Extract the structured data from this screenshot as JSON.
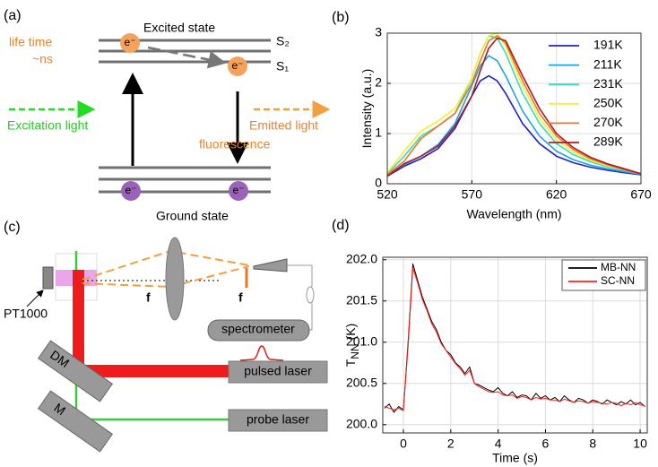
{
  "panel_a": {
    "label": "(a)",
    "excited_state": "Excited state",
    "s2": "S₂",
    "s1": "S₁",
    "life_time": "life time",
    "lifetime_value": "~ns",
    "electrons": [
      "e⁻",
      "e⁻",
      "e⁻",
      "e⁻"
    ],
    "excitation": "Excitation light",
    "emitted": "Emitted light",
    "fluorescence": "fluorescence",
    "ground_state": "Ground state"
  },
  "panel_c": {
    "label": "(c)",
    "sensor": "PT1000",
    "focal_1": "f",
    "focal_2": "f",
    "spectrometer": "spectrometer",
    "dichroic_mirror": "DM",
    "pulsed_laser": "pulsed laser",
    "mirror": "M",
    "probe_laser": "probe laser"
  },
  "chart_data": [
    {
      "type": "line",
      "panel_label": "(b)",
      "xlabel": "Wavelength (nm)",
      "ylabel": "Intensity (a.u.)",
      "xlim": [
        520,
        670
      ],
      "xticks": [
        520,
        570,
        620,
        670
      ],
      "ylim": [
        0,
        3
      ],
      "yticks": [
        0,
        1,
        2,
        3
      ],
      "grid": true,
      "legend": "upper right",
      "legend_frame": false,
      "x": [
        520,
        530,
        540,
        550,
        560,
        570,
        575,
        580,
        585,
        590,
        600,
        610,
        620,
        630,
        640,
        650,
        660,
        670
      ],
      "series": [
        {
          "name": "191K",
          "color": "#2222c0",
          "values": [
            0.15,
            0.35,
            0.5,
            0.7,
            1.1,
            1.75,
            2.05,
            2.15,
            2.05,
            1.8,
            1.2,
            0.8,
            0.55,
            0.42,
            0.33,
            0.27,
            0.22,
            0.18
          ]
        },
        {
          "name": "211K",
          "color": "#1ea4e6",
          "values": [
            0.17,
            0.38,
            0.55,
            0.78,
            1.2,
            1.95,
            2.35,
            2.55,
            2.45,
            2.15,
            1.45,
            0.95,
            0.65,
            0.48,
            0.37,
            0.3,
            0.24,
            0.19
          ]
        },
        {
          "name": "231K",
          "color": "#34e0b4",
          "values": [
            0.2,
            0.55,
            0.95,
            1.15,
            1.4,
            2.1,
            2.6,
            2.95,
            2.9,
            2.6,
            1.8,
            1.2,
            0.8,
            0.58,
            0.44,
            0.34,
            0.27,
            0.2
          ]
        },
        {
          "name": "250K",
          "color": "#f2ee3c",
          "values": [
            0.22,
            0.65,
            1.05,
            1.25,
            1.5,
            2.1,
            2.6,
            2.95,
            3.0,
            2.75,
            1.95,
            1.3,
            0.88,
            0.63,
            0.47,
            0.36,
            0.28,
            0.2
          ]
        },
        {
          "name": "270K",
          "color": "#f07424",
          "values": [
            0.18,
            0.45,
            0.9,
            1.15,
            1.4,
            2.0,
            2.45,
            2.85,
            2.95,
            2.8,
            2.05,
            1.4,
            0.95,
            0.68,
            0.5,
            0.38,
            0.28,
            0.2
          ]
        },
        {
          "name": "289K",
          "color": "#a41e24",
          "values": [
            0.15,
            0.4,
            0.55,
            0.75,
            1.15,
            1.75,
            2.25,
            2.7,
            2.9,
            2.85,
            2.15,
            1.5,
            1.0,
            0.72,
            0.53,
            0.4,
            0.3,
            0.2
          ]
        }
      ]
    },
    {
      "type": "line",
      "panel_label": "(d)",
      "xlabel": "Time (s)",
      "ylabel": "T",
      "ylabel_sub": "NN",
      "ylabel_unit": "(K)",
      "xlim": [
        -0.87,
        10.3
      ],
      "xticks": [
        0,
        2,
        4,
        6,
        8,
        10
      ],
      "ylim": [
        199.9,
        202.03
      ],
      "yticks": [
        {
          "value": 200,
          "label": "200.0"
        },
        200.5,
        {
          "value": 201,
          "label": "201.0"
        },
        201.5,
        {
          "value": 202,
          "label": "202.0"
        }
      ],
      "grid": true,
      "legend": "upper right",
      "legend_frame": true,
      "x": [
        -0.8,
        -0.6,
        -0.4,
        -0.2,
        0,
        0.2,
        0.4,
        0.6,
        0.8,
        1,
        1.2,
        1.4,
        1.6,
        1.8,
        2,
        2.2,
        2.4,
        2.6,
        2.8,
        3,
        3.2,
        3.4,
        3.6,
        3.8,
        4,
        4.2,
        4.4,
        4.6,
        4.8,
        5,
        5.2,
        5.4,
        5.6,
        5.8,
        6,
        6.2,
        6.4,
        6.6,
        6.8,
        7,
        7.2,
        7.4,
        7.6,
        7.8,
        8,
        8.2,
        8.4,
        8.6,
        8.8,
        9,
        9.2,
        9.4,
        9.6,
        9.8,
        10,
        10.2
      ],
      "series": [
        {
          "name": "MB-NN",
          "color": "#000000",
          "values": [
            200.2,
            200.25,
            200.15,
            200.22,
            200.18,
            201.0,
            201.95,
            201.75,
            201.55,
            201.4,
            201.25,
            201.15,
            201.0,
            200.9,
            200.85,
            200.75,
            200.7,
            200.62,
            200.7,
            200.5,
            200.48,
            200.45,
            200.42,
            200.4,
            200.45,
            200.38,
            200.35,
            200.4,
            200.33,
            200.36,
            200.35,
            200.3,
            200.38,
            200.32,
            200.35,
            200.3,
            200.33,
            200.28,
            200.35,
            200.3,
            200.27,
            200.32,
            200.3,
            200.26,
            200.3,
            200.28,
            200.25,
            200.3,
            200.27,
            200.24,
            200.28,
            200.25,
            200.3,
            200.24,
            200.27,
            200.22
          ]
        },
        {
          "name": "SC-NN",
          "color": "#ff2020",
          "values": [
            200.22,
            200.2,
            200.18,
            200.2,
            200.17,
            200.95,
            201.9,
            201.72,
            201.52,
            201.38,
            201.22,
            201.12,
            200.98,
            200.9,
            200.82,
            200.74,
            200.68,
            200.6,
            200.66,
            200.5,
            200.46,
            200.43,
            200.4,
            200.39,
            200.4,
            200.36,
            200.35,
            200.36,
            200.32,
            200.34,
            200.33,
            200.3,
            200.33,
            200.31,
            200.32,
            200.3,
            200.3,
            200.28,
            200.31,
            200.29,
            200.27,
            200.29,
            200.28,
            200.26,
            200.28,
            200.27,
            200.26,
            200.25,
            200.27,
            200.26,
            200.23,
            200.26,
            200.24,
            200.27,
            200.24,
            200.23
          ]
        }
      ]
    }
  ]
}
